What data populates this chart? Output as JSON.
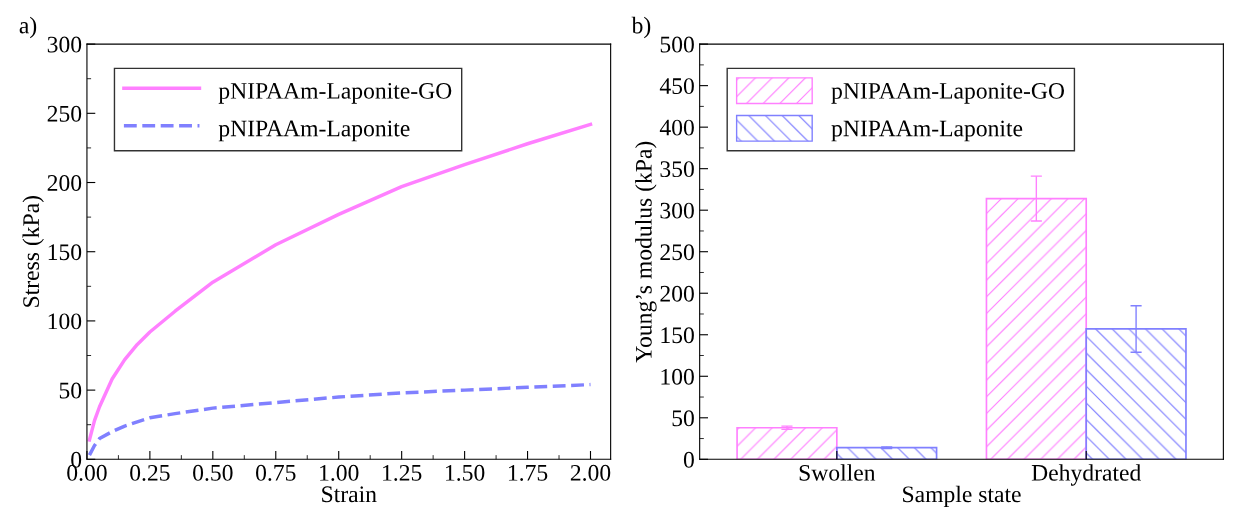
{
  "chart_data": [
    {
      "type": "line",
      "xlabel": "Strain",
      "ylabel": "Stress (kPa)",
      "annotations": [
        "a)"
      ],
      "xlim": [
        0,
        2.08
      ],
      "xticks": [
        {
          "value": 0,
          "label": "0.00"
        },
        {
          "value": 0.25,
          "label": "0.25"
        },
        {
          "value": 0.5,
          "label": "0.50"
        },
        {
          "value": 0.75,
          "label": "0.75"
        },
        {
          "value": 1.0,
          "label": "1.00"
        },
        {
          "value": 1.25,
          "label": "1.25"
        },
        {
          "value": 1.5,
          "label": "1.50"
        },
        {
          "value": 1.75,
          "label": "1.75"
        },
        {
          "value": 2.0,
          "label": "2.00"
        }
      ],
      "ylim": [
        0,
        300
      ],
      "yticks": [
        0,
        50,
        100,
        150,
        200,
        250,
        300
      ],
      "legend": "top left",
      "grid": false,
      "x": [
        0.01,
        0.03,
        0.05,
        0.1,
        0.15,
        0.2,
        0.25,
        0.35,
        0.5,
        0.75,
        1.0,
        1.25,
        1.5,
        1.75,
        2.0
      ],
      "series": [
        {
          "name": "pNIPAAm-Laponite-GO",
          "color": "#ff80ff",
          "line_style": "solid",
          "values": [
            14,
            28,
            38,
            58,
            72,
            83,
            92,
            107,
            128,
            155,
            177,
            197,
            213,
            228,
            242
          ]
        },
        {
          "name": "pNIPAAm-Laponite",
          "color": "#8080ff",
          "line_style": "dashed",
          "values": [
            3,
            10,
            15,
            20,
            24,
            27,
            30,
            33,
            37,
            41,
            45,
            48,
            50,
            52,
            54
          ]
        }
      ]
    },
    {
      "type": "bar",
      "xlabel": "Sample state",
      "ylabel": "Young’s modulus (kPa)",
      "annotations": [
        "b)"
      ],
      "categories": [
        "Swollen",
        "Dehydrated"
      ],
      "ylim": [
        0,
        500
      ],
      "yticks": [
        0,
        50,
        100,
        150,
        200,
        250,
        300,
        350,
        400,
        450,
        500
      ],
      "legend": "top left",
      "grid": false,
      "series": [
        {
          "name": "pNIPAAm-Laponite-GO",
          "color": "#ff80ff",
          "values": [
            38,
            314
          ],
          "errors": [
            2,
            27
          ]
        },
        {
          "name": "pNIPAAm-Laponite",
          "color": "#8080ff",
          "values": [
            14,
            157
          ],
          "errors": [
            1,
            28
          ]
        }
      ]
    }
  ]
}
